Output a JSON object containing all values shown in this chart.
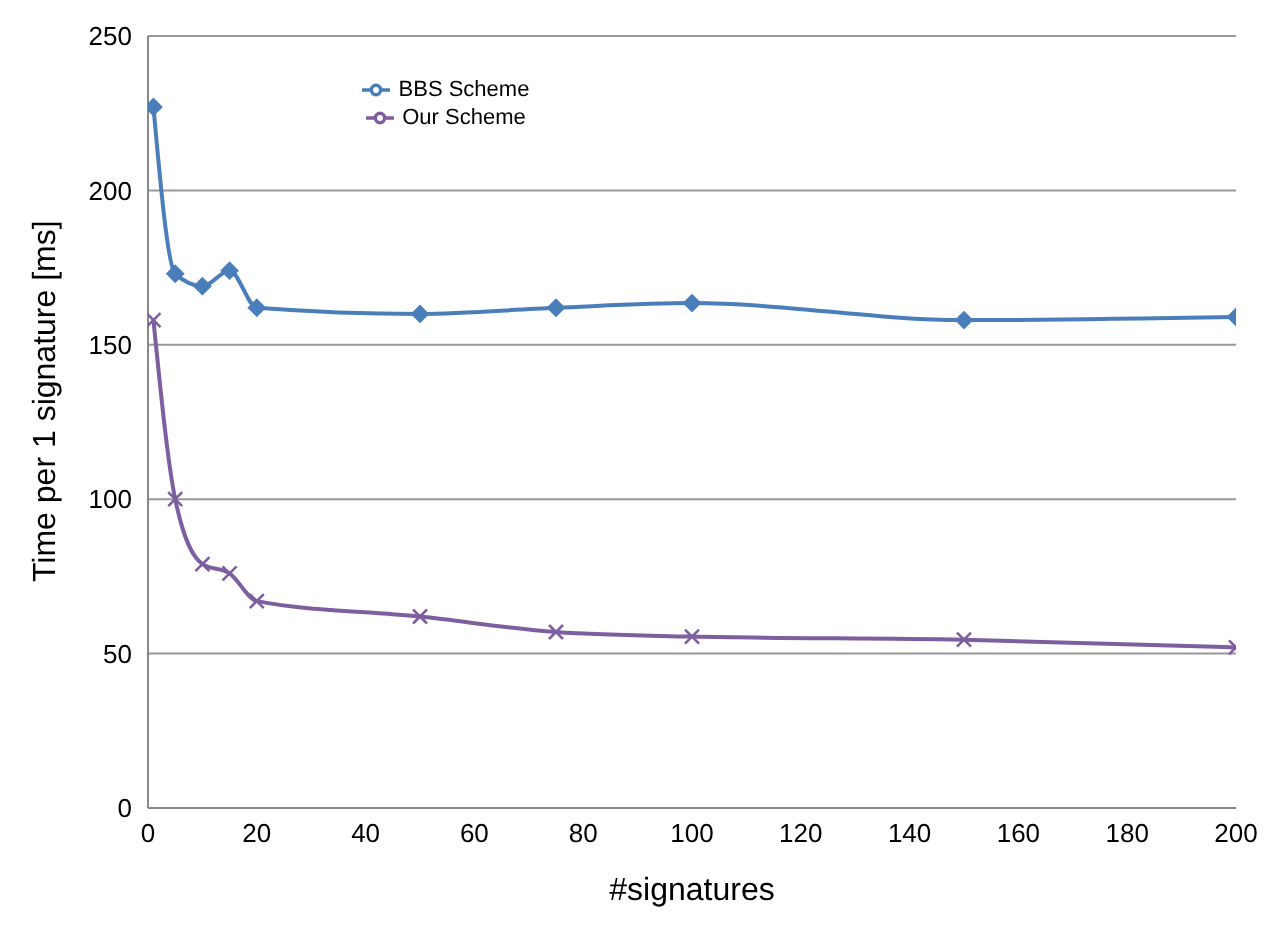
{
  "chart_data": {
    "type": "line",
    "xlabel": "#signatures",
    "ylabel": "Time per 1 signature [ms]",
    "xlim": [
      0,
      200
    ],
    "xticks": [
      0,
      20,
      40,
      60,
      80,
      100,
      120,
      140,
      160,
      180,
      200
    ],
    "ylim": [
      0,
      250
    ],
    "yticks": [
      0,
      50,
      100,
      150,
      200,
      250
    ],
    "grid": "y",
    "legend": "top left",
    "x": [
      1,
      5,
      10,
      15,
      20,
      50,
      75,
      100,
      150,
      200
    ],
    "series": [
      {
        "name": "BBS Scheme",
        "color": "#4a7ebb",
        "marker": "diamond",
        "values": [
          227,
          173,
          169,
          174,
          162,
          160,
          162,
          163.5,
          158,
          159
        ]
      },
      {
        "name": "Our Scheme",
        "color": "#7d5fa0",
        "marker": "cross",
        "values": [
          158,
          100,
          79,
          76,
          67,
          62,
          57,
          55.5,
          54.5,
          52
        ]
      }
    ]
  }
}
